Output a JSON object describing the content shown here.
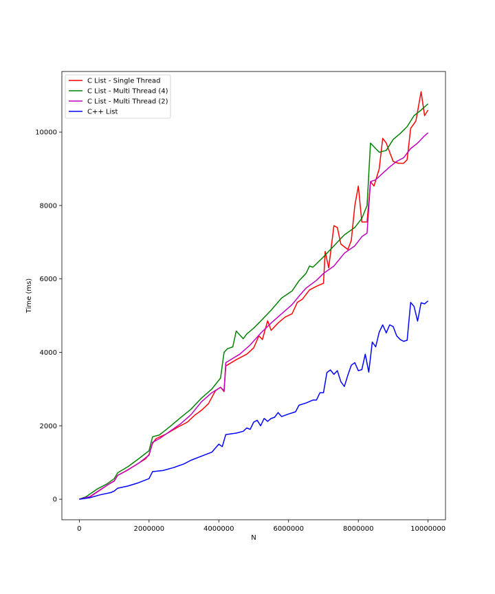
{
  "chart_data": {
    "type": "line",
    "xlabel": "N",
    "ylabel": "Time (ms)",
    "xlim": [
      -500000,
      10500000
    ],
    "ylim": [
      -560,
      11650
    ],
    "xticks": [
      0,
      2000000,
      4000000,
      6000000,
      8000000,
      10000000
    ],
    "xtick_labels": [
      "0",
      "2000000",
      "4000000",
      "6000000",
      "8000000",
      "10000000"
    ],
    "yticks": [
      0,
      2000,
      4000,
      6000,
      8000,
      10000
    ],
    "ytick_labels": [
      "0",
      "2000",
      "4000",
      "6000",
      "8000",
      "10000"
    ],
    "legend_position": "upper-left",
    "series": [
      {
        "name": "C List - Single Thread",
        "color": "#ff0000",
        "x": [
          0,
          300000,
          600000,
          800000,
          1000000,
          1100000,
          1300000,
          1600000,
          1900000,
          2000000,
          2100000,
          2200000,
          2500000,
          2800000,
          3100000,
          3300000,
          3500000,
          3700000,
          3900000,
          4050000,
          4150000,
          4200000,
          4500000,
          4800000,
          5000000,
          5150000,
          5250000,
          5400000,
          5500000,
          5700000,
          5900000,
          6100000,
          6250000,
          6400000,
          6600000,
          6800000,
          7000000,
          7050000,
          7150000,
          7300000,
          7400000,
          7500000,
          7700000,
          7800000,
          7900000,
          8000000,
          8100000,
          8250000,
          8350000,
          8450000,
          8600000,
          8700000,
          8800000,
          9000000,
          9150000,
          9300000,
          9400000,
          9500000,
          9650000,
          9800000,
          9900000,
          10000000
        ],
        "y": [
          0,
          60,
          250,
          380,
          500,
          650,
          750,
          920,
          1100,
          1220,
          1520,
          1650,
          1780,
          1950,
          2100,
          2280,
          2420,
          2600,
          2950,
          3050,
          2930,
          3630,
          3800,
          3950,
          4120,
          4450,
          4350,
          4860,
          4600,
          4800,
          4960,
          5050,
          5360,
          5450,
          5700,
          5800,
          5880,
          6750,
          6300,
          7450,
          7400,
          6950,
          6800,
          7050,
          8000,
          8530,
          7550,
          7550,
          8650,
          8530,
          9000,
          9830,
          9700,
          9200,
          9150,
          9150,
          9250,
          10100,
          10300,
          11100,
          10450,
          10600
        ]
      },
      {
        "name": "C List - Multi Thread (4)",
        "color": "#008000",
        "x": [
          0,
          200000,
          500000,
          800000,
          1000000,
          1100000,
          1400000,
          1700000,
          2000000,
          2100000,
          2300000,
          2600000,
          2900000,
          3200000,
          3500000,
          3800000,
          4050000,
          4150000,
          4250000,
          4400000,
          4500000,
          4700000,
          4800000,
          5000000,
          5200000,
          5500000,
          5800000,
          6100000,
          6300000,
          6500000,
          6600000,
          6700000,
          7000000,
          7300000,
          7600000,
          7900000,
          8100000,
          8250000,
          8350000,
          8450000,
          8600000,
          8800000,
          9000000,
          9200000,
          9400000,
          9600000,
          9800000,
          10000000
        ],
        "y": [
          0,
          70,
          270,
          420,
          560,
          720,
          890,
          1100,
          1320,
          1700,
          1750,
          1980,
          2220,
          2450,
          2750,
          3000,
          3300,
          4000,
          4100,
          4150,
          4580,
          4370,
          4500,
          4660,
          4850,
          5150,
          5480,
          5670,
          5950,
          6150,
          6350,
          6320,
          6600,
          6900,
          7200,
          7400,
          7650,
          8000,
          9700,
          9600,
          9450,
          9500,
          9800,
          9960,
          10150,
          10450,
          10600,
          10770
        ]
      },
      {
        "name": "C List - Multi Thread (2)",
        "color": "#bf00bf",
        "x": [
          0,
          300000,
          600000,
          900000,
          1000000,
          1100000,
          1400000,
          1700000,
          2000000,
          2100000,
          2300000,
          2600000,
          2900000,
          3200000,
          3500000,
          3800000,
          4050000,
          4150000,
          4200000,
          4600000,
          4900000,
          5200000,
          5500000,
          5800000,
          6100000,
          6300000,
          6500000,
          6800000,
          7000000,
          7300000,
          7600000,
          7900000,
          8100000,
          8250000,
          8350000,
          8500000,
          8700000,
          8900000,
          9100000,
          9300000,
          9500000,
          9700000,
          9900000,
          10000000
        ],
        "y": [
          0,
          70,
          260,
          440,
          490,
          650,
          800,
          980,
          1200,
          1550,
          1650,
          1850,
          2050,
          2300,
          2650,
          2900,
          3050,
          2950,
          3720,
          3950,
          4200,
          4520,
          4800,
          5050,
          5300,
          5530,
          5750,
          5960,
          6150,
          6350,
          6700,
          6900,
          7150,
          7250,
          8650,
          8700,
          8880,
          9050,
          9200,
          9300,
          9550,
          9700,
          9900,
          9980
        ]
      },
      {
        "name": "C++ List",
        "color": "#0000ff",
        "x": [
          0,
          300000,
          600000,
          900000,
          1000000,
          1100000,
          1400000,
          1700000,
          2000000,
          2100000,
          2400000,
          2700000,
          3000000,
          3200000,
          3500000,
          3800000,
          4000000,
          4100000,
          4200000,
          4500000,
          4700000,
          4800000,
          4900000,
          5000000,
          5100000,
          5200000,
          5300000,
          5400000,
          5500000,
          5600000,
          5700000,
          5800000,
          6000000,
          6200000,
          6300000,
          6500000,
          6700000,
          6800000,
          6900000,
          7000000,
          7100000,
          7200000,
          7300000,
          7400000,
          7500000,
          7600000,
          7700000,
          7800000,
          7900000,
          8000000,
          8100000,
          8200000,
          8300000,
          8400000,
          8500000,
          8600000,
          8700000,
          8800000,
          8900000,
          9000000,
          9100000,
          9200000,
          9300000,
          9400000,
          9500000,
          9600000,
          9700000,
          9800000,
          9900000,
          10000000
        ],
        "y": [
          0,
          40,
          120,
          180,
          220,
          300,
          360,
          450,
          560,
          750,
          780,
          860,
          960,
          1060,
          1170,
          1280,
          1500,
          1430,
          1760,
          1800,
          1850,
          1940,
          1900,
          2100,
          2150,
          2000,
          2200,
          2120,
          2200,
          2230,
          2360,
          2250,
          2320,
          2380,
          2560,
          2620,
          2700,
          2700,
          2900,
          2900,
          3450,
          3520,
          3400,
          3500,
          3200,
          3070,
          3380,
          3650,
          3720,
          3500,
          3530,
          3950,
          3460,
          4280,
          4150,
          4550,
          4750,
          4530,
          4750,
          4700,
          4450,
          4350,
          4300,
          4330,
          5360,
          5250,
          4850,
          5350,
          5320,
          5400
        ]
      }
    ]
  }
}
